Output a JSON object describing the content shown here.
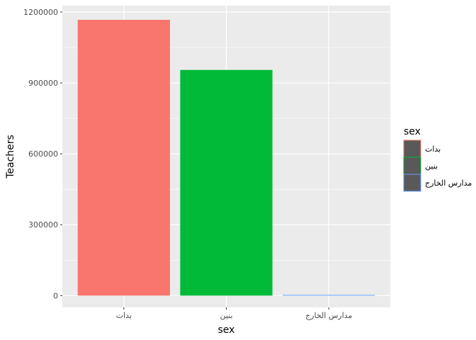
{
  "chart_data": {
    "type": "bar",
    "categories": [
      "بدات",
      "بنين",
      "مدارس الخارج"
    ],
    "values": [
      1167000,
      955000,
      2000
    ],
    "colors": [
      "#F8766D",
      "#00BA38",
      "#619CFF"
    ],
    "xlabel": "sex",
    "ylabel": "Teachers",
    "ylim": [
      -50000,
      1227000
    ],
    "yticks": [
      0,
      300000,
      600000,
      900000,
      1200000
    ],
    "ytick_labels": [
      "0",
      "300000",
      "600000",
      "900000",
      "1200000"
    ],
    "grid": true,
    "legend": {
      "title": "sex",
      "position": "right",
      "entries": [
        "بدات",
        "بنين",
        "مدارس الخارج"
      ]
    },
    "panel_background": "#EBEBEB",
    "grid_color": "#FFFFFF"
  }
}
